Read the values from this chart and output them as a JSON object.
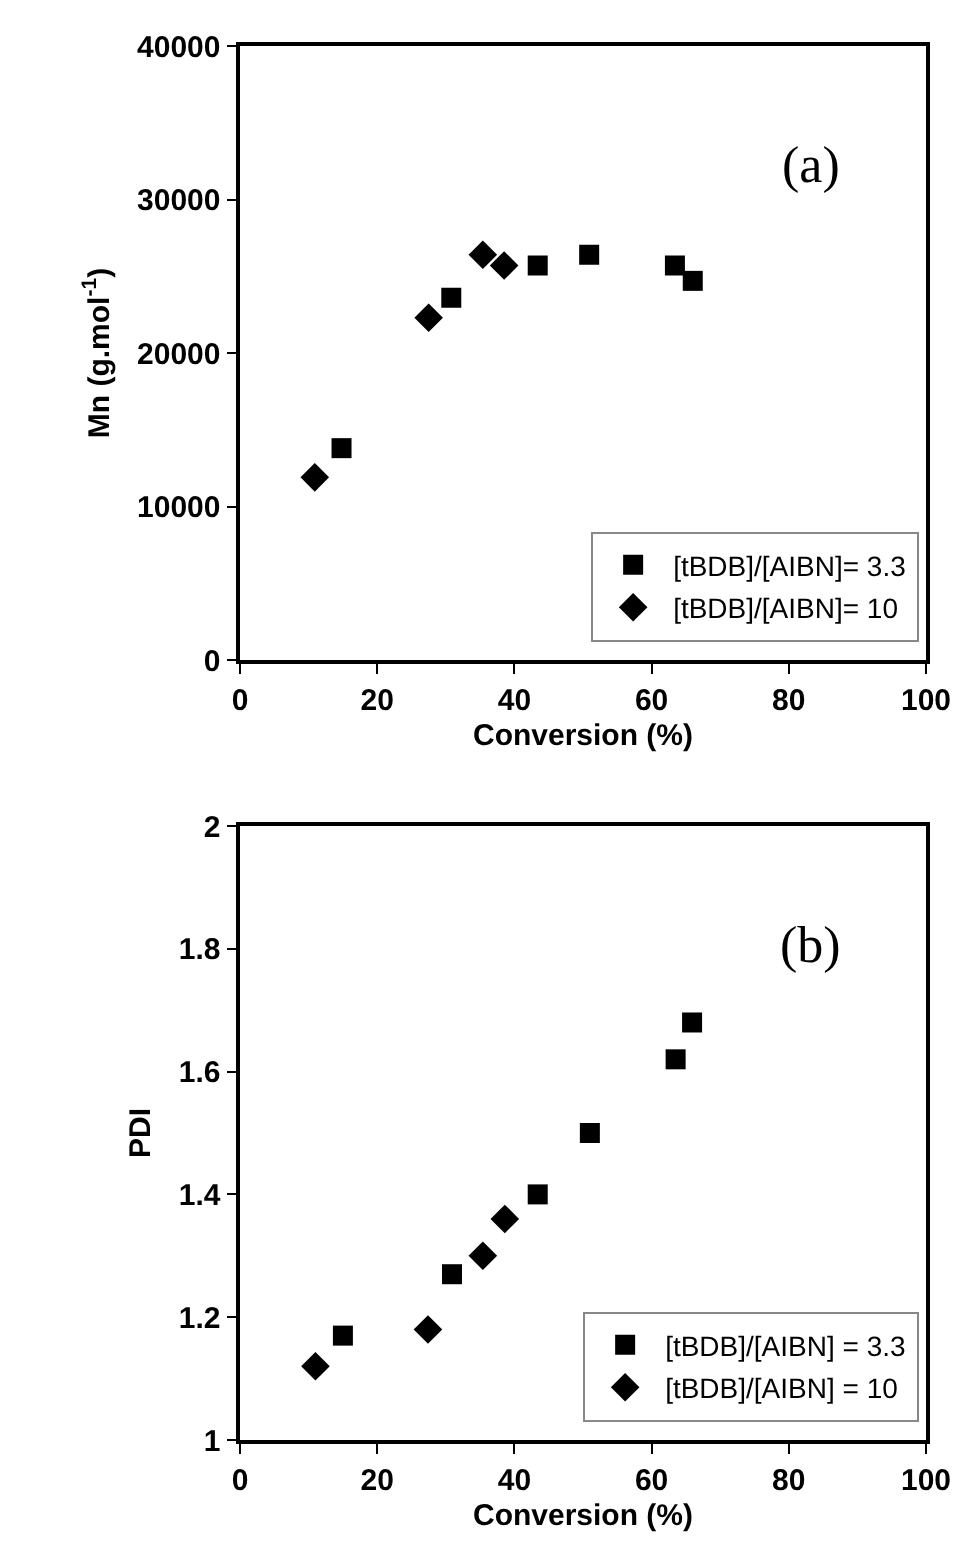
{
  "chart_data": [
    {
      "type": "scatter",
      "xlabel": "Conversion (%)",
      "ylabel": "Mn (g.mol$^{-1}$)",
      "annotations": [
        "(a)"
      ],
      "xlim": [
        0,
        100
      ],
      "xticks": [
        0,
        20,
        40,
        60,
        80,
        100
      ],
      "ylim": [
        0,
        40000
      ],
      "yticks": [
        0,
        10000,
        20000,
        30000,
        40000
      ],
      "grid": false,
      "legend": "bottom right",
      "series": [
        {
          "name": "[tBDB]/[AIBN]= 3.3",
          "color": "#000000",
          "marker": "square",
          "x": [
            14.8,
            30.8,
            43.4,
            50.9,
            63.4,
            66.0
          ],
          "values": [
            13800,
            23600,
            25700,
            26400,
            25700,
            24700
          ]
        },
        {
          "name": "[tBDB]/[AIBN]= 10",
          "color": "#000000",
          "marker": "diamond",
          "x": [
            10.9,
            27.5,
            35.4,
            38.5
          ],
          "values": [
            11900,
            22300,
            26400,
            25700
          ]
        }
      ]
    },
    {
      "type": "scatter",
      "xlabel": "Conversion (%)",
      "ylabel": "PDI",
      "annotations": [
        "(b)"
      ],
      "xlim": [
        0,
        100
      ],
      "xticks": [
        0,
        20,
        40,
        60,
        80,
        100
      ],
      "ylim": [
        1,
        2
      ],
      "yticks": [
        1,
        1.2,
        1.4,
        1.6,
        1.8,
        2
      ],
      "grid": false,
      "legend": "bottom right",
      "series": [
        {
          "name": "[tBDB]/[AIBN] = 3.3",
          "color": "#000000",
          "marker": "square",
          "x": [
            15.0,
            30.9,
            43.4,
            51.0,
            63.5,
            65.9
          ],
          "values": [
            1.17,
            1.27,
            1.4,
            1.5,
            1.62,
            1.68
          ]
        },
        {
          "name": "[tBDB]/[AIBN] = 10",
          "color": "#000000",
          "marker": "diamond",
          "x": [
            11.0,
            27.4,
            35.4,
            38.6
          ],
          "values": [
            1.12,
            1.18,
            1.3,
            1.36
          ]
        }
      ]
    }
  ]
}
